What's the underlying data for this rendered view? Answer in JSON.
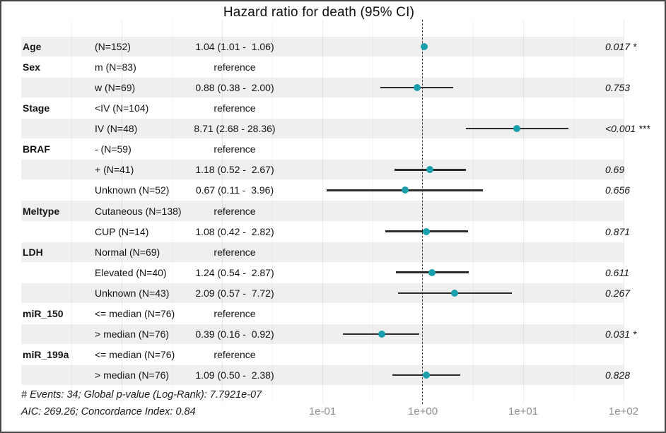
{
  "chart_data": {
    "type": "forest",
    "title": "Hazard ratio for death (95% CI)",
    "x_scale": "log10",
    "x_range": [
      0.0001,
      100
    ],
    "reference_line": 1.0,
    "grid": "major-and-minor-log-decades",
    "x_ticks": [
      {
        "label": "1e-01",
        "value": 0.1
      },
      {
        "label": "1e+00",
        "value": 1
      },
      {
        "label": "1e+01",
        "value": 10
      },
      {
        "label": "1e+02",
        "value": 100
      }
    ],
    "footnotes": [
      "# Events: 34; Global p-value (Log-Rank): 7.7921e-07",
      "AIC: 269.26; Concordance Index: 0.84"
    ],
    "colors": {
      "marker": "#1aa0ac",
      "stripe": "#efefef",
      "ci_line": "#2b2b2b",
      "dashed_line": "#3f3f3f",
      "axis_text": "#8e8e8e"
    },
    "rows": [
      {
        "variable": "Age",
        "level": "(N=152)",
        "estimate": "1.04 (1.01 -  1.06)",
        "p": "0.017 *",
        "hr": 1.04,
        "ci_low": 1.01,
        "ci_high": 1.06,
        "reference": false,
        "shaded": true
      },
      {
        "variable": "Sex",
        "level": "m (N=83)",
        "estimate": "reference",
        "p": "",
        "hr": null,
        "ci_low": null,
        "ci_high": null,
        "reference": true,
        "shaded": false
      },
      {
        "variable": "",
        "level": "w (N=69)",
        "estimate": "0.88 (0.38 -  2.00)",
        "p": "0.753",
        "hr": 0.88,
        "ci_low": 0.38,
        "ci_high": 2.0,
        "reference": false,
        "shaded": true
      },
      {
        "variable": "Stage",
        "level": "<IV (N=104)",
        "estimate": "reference",
        "p": "",
        "hr": null,
        "ci_low": null,
        "ci_high": null,
        "reference": true,
        "shaded": false
      },
      {
        "variable": "",
        "level": "IV (N=48)",
        "estimate": "8.71 (2.68 - 28.36)",
        "p": "<0.001 ***",
        "hr": 8.71,
        "ci_low": 2.68,
        "ci_high": 28.36,
        "reference": false,
        "shaded": true
      },
      {
        "variable": "BRAF",
        "level": "- (N=59)",
        "estimate": "reference",
        "p": "",
        "hr": null,
        "ci_low": null,
        "ci_high": null,
        "reference": true,
        "shaded": false
      },
      {
        "variable": "",
        "level": "+ (N=41)",
        "estimate": "1.18 (0.52 -  2.67)",
        "p": "0.69",
        "hr": 1.18,
        "ci_low": 0.52,
        "ci_high": 2.67,
        "reference": false,
        "shaded": true
      },
      {
        "variable": "",
        "level": "Unknown (N=52)",
        "estimate": "0.67 (0.11 -  3.96)",
        "p": "0.656",
        "hr": 0.67,
        "ci_low": 0.11,
        "ci_high": 3.96,
        "reference": false,
        "shaded": false
      },
      {
        "variable": "Meltype",
        "level": "Cutaneous (N=138)",
        "estimate": "reference",
        "p": "",
        "hr": null,
        "ci_low": null,
        "ci_high": null,
        "reference": true,
        "shaded": true
      },
      {
        "variable": "",
        "level": "CUP (N=14)",
        "estimate": "1.08 (0.42 -  2.82)",
        "p": "0.871",
        "hr": 1.08,
        "ci_low": 0.42,
        "ci_high": 2.82,
        "reference": false,
        "shaded": false
      },
      {
        "variable": "LDH",
        "level": "Normal (N=69)",
        "estimate": "reference",
        "p": "",
        "hr": null,
        "ci_low": null,
        "ci_high": null,
        "reference": true,
        "shaded": true
      },
      {
        "variable": "",
        "level": "Elevated (N=40)",
        "estimate": "1.24 (0.54 -  2.87)",
        "p": "0.611",
        "hr": 1.24,
        "ci_low": 0.54,
        "ci_high": 2.87,
        "reference": false,
        "shaded": false
      },
      {
        "variable": "",
        "level": "Unknown (N=43)",
        "estimate": "2.09 (0.57 -  7.72)",
        "p": "0.267",
        "hr": 2.09,
        "ci_low": 0.57,
        "ci_high": 7.72,
        "reference": false,
        "shaded": true
      },
      {
        "variable": "miR_150",
        "level": "<= median (N=76)",
        "estimate": "reference",
        "p": "",
        "hr": null,
        "ci_low": null,
        "ci_high": null,
        "reference": true,
        "shaded": false
      },
      {
        "variable": "",
        "level": "> median (N=76)",
        "estimate": "0.39 (0.16 -  0.92)",
        "p": "0.031 *",
        "hr": 0.39,
        "ci_low": 0.16,
        "ci_high": 0.92,
        "reference": false,
        "shaded": true
      },
      {
        "variable": "miR_199a",
        "level": "<= median (N=76)",
        "estimate": "reference",
        "p": "",
        "hr": null,
        "ci_low": null,
        "ci_high": null,
        "reference": true,
        "shaded": false
      },
      {
        "variable": "",
        "level": "> median (N=76)",
        "estimate": "1.09 (0.50 -  2.38)",
        "p": "0.828",
        "hr": 1.09,
        "ci_low": 0.5,
        "ci_high": 2.38,
        "reference": false,
        "shaded": true
      }
    ]
  }
}
